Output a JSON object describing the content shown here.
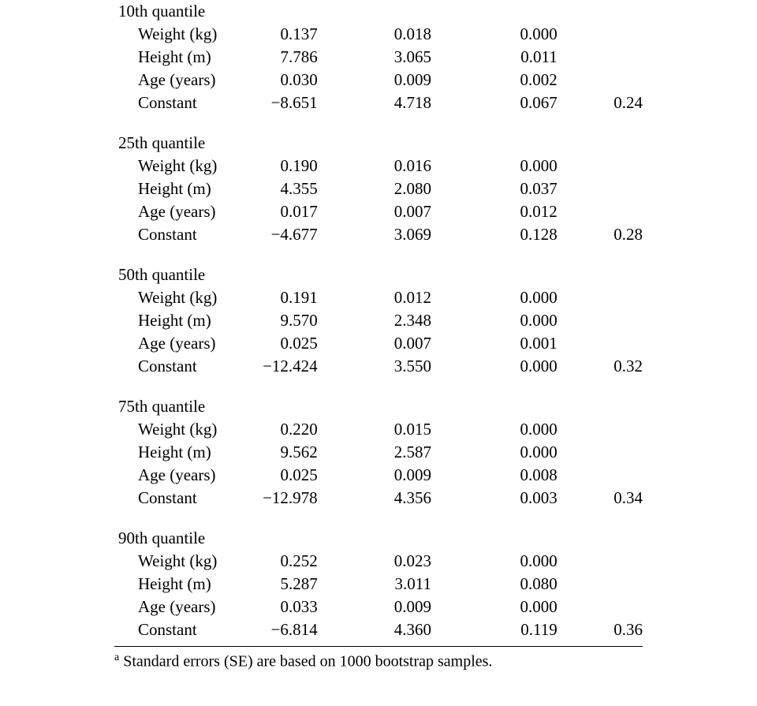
{
  "groups": [
    {
      "title": "10th quantile",
      "rows": [
        {
          "label": "Weight (kg)",
          "b": "0.137",
          "se": "0.018",
          "p": "0.000",
          "r2": ""
        },
        {
          "label": "Height (m)",
          "b": "7.786",
          "se": "3.065",
          "p": "0.011",
          "r2": ""
        },
        {
          "label": "Age (years)",
          "b": "0.030",
          "se": "0.009",
          "p": "0.002",
          "r2": ""
        },
        {
          "label": "Constant",
          "b": "−8.651",
          "se": "4.718",
          "p": "0.067",
          "r2": "0.24"
        }
      ]
    },
    {
      "title": "25th quantile",
      "rows": [
        {
          "label": "Weight (kg)",
          "b": "0.190",
          "se": "0.016",
          "p": "0.000",
          "r2": ""
        },
        {
          "label": "Height (m)",
          "b": "4.355",
          "se": "2.080",
          "p": "0.037",
          "r2": ""
        },
        {
          "label": "Age (years)",
          "b": "0.017",
          "se": "0.007",
          "p": "0.012",
          "r2": ""
        },
        {
          "label": "Constant",
          "b": "−4.677",
          "se": "3.069",
          "p": "0.128",
          "r2": "0.28"
        }
      ]
    },
    {
      "title": "50th quantile",
      "rows": [
        {
          "label": "Weight (kg)",
          "b": "0.191",
          "se": "0.012",
          "p": "0.000",
          "r2": ""
        },
        {
          "label": "Height (m)",
          "b": "9.570",
          "se": "2.348",
          "p": "0.000",
          "r2": ""
        },
        {
          "label": "Age (years)",
          "b": "0.025",
          "se": "0.007",
          "p": "0.001",
          "r2": ""
        },
        {
          "label": "Constant",
          "b": "−12.424",
          "se": "3.550",
          "p": "0.000",
          "r2": "0.32"
        }
      ]
    },
    {
      "title": "75th quantile",
      "rows": [
        {
          "label": "Weight (kg)",
          "b": "0.220",
          "se": "0.015",
          "p": "0.000",
          "r2": ""
        },
        {
          "label": "Height (m)",
          "b": "9.562",
          "se": "2.587",
          "p": "0.000",
          "r2": ""
        },
        {
          "label": "Age (years)",
          "b": "0.025",
          "se": "0.009",
          "p": "0.008",
          "r2": ""
        },
        {
          "label": "Constant",
          "b": "−12.978",
          "se": "4.356",
          "p": "0.003",
          "r2": "0.34"
        }
      ]
    },
    {
      "title": "90th quantile",
      "rows": [
        {
          "label": "Weight (kg)",
          "b": "0.252",
          "se": "0.023",
          "p": "0.000",
          "r2": ""
        },
        {
          "label": "Height (m)",
          "b": "5.287",
          "se": "3.011",
          "p": "0.080",
          "r2": ""
        },
        {
          "label": "Age (years)",
          "b": "0.033",
          "se": "0.009",
          "p": "0.000",
          "r2": ""
        },
        {
          "label": "Constant",
          "b": "−6.814",
          "se": "4.360",
          "p": "0.119",
          "r2": "0.36"
        }
      ]
    }
  ],
  "footnote": {
    "marker": "a",
    "text": " Standard errors (SE) are based on 1000 bootstrap samples."
  },
  "style": {
    "font_family": "Times New Roman",
    "font_size_pt": 16,
    "text_color": "#000000",
    "rule_color": "#000000",
    "columns": [
      "label",
      "b",
      "se",
      "p",
      "r2"
    ],
    "col_align": [
      "left",
      "right",
      "right",
      "right",
      "right"
    ]
  }
}
